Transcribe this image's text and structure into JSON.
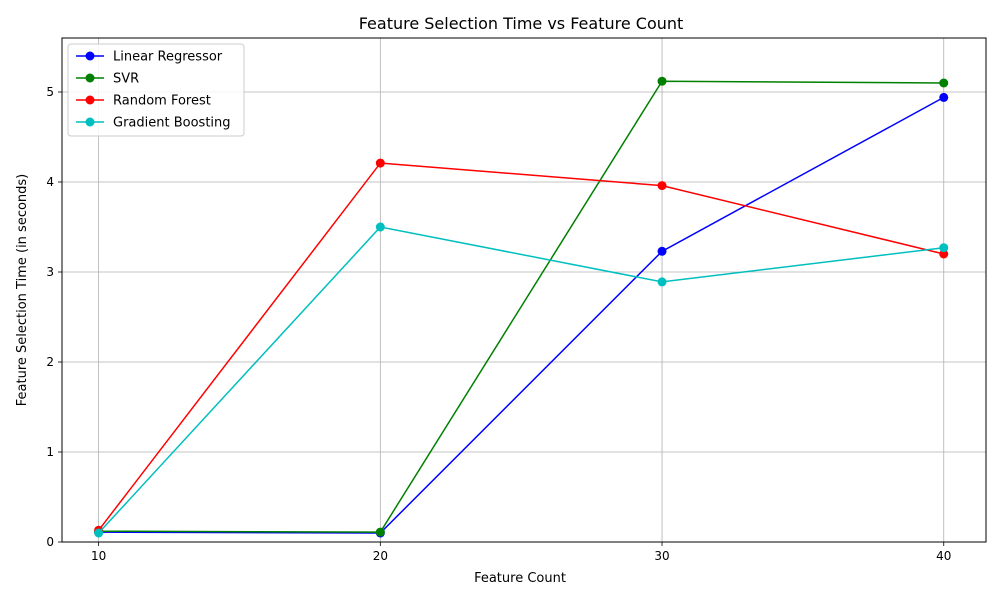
{
  "chart_data": {
    "type": "line",
    "title": "Feature Selection Time vs Feature Count",
    "xlabel": "Feature Count",
    "ylabel": "Feature Selection Time (in seconds)",
    "x": [
      10,
      20,
      30,
      40
    ],
    "x_ticks": [
      "10",
      "20",
      "30",
      "40"
    ],
    "xlim": [
      8.7,
      41.5
    ],
    "ylim": [
      0,
      5.6
    ],
    "y_ticks": [
      0,
      1,
      2,
      3,
      4,
      5
    ],
    "y_tick_labels": [
      "0",
      "1",
      "2",
      "3",
      "4",
      "5"
    ],
    "grid": true,
    "legend_position": "top-left",
    "marker": "circle",
    "series": [
      {
        "name": "Linear Regressor",
        "color": "#0000ff",
        "values": [
          0.11,
          0.1,
          3.23,
          4.94
        ]
      },
      {
        "name": "SVR",
        "color": "#008000",
        "values": [
          0.12,
          0.11,
          5.12,
          5.1
        ]
      },
      {
        "name": "Random Forest",
        "color": "#ff0000",
        "values": [
          0.13,
          4.21,
          3.96,
          3.2
        ]
      },
      {
        "name": "Gradient Boosting",
        "color": "#00bfbf",
        "values": [
          0.1,
          3.5,
          2.89,
          3.27
        ]
      }
    ]
  }
}
